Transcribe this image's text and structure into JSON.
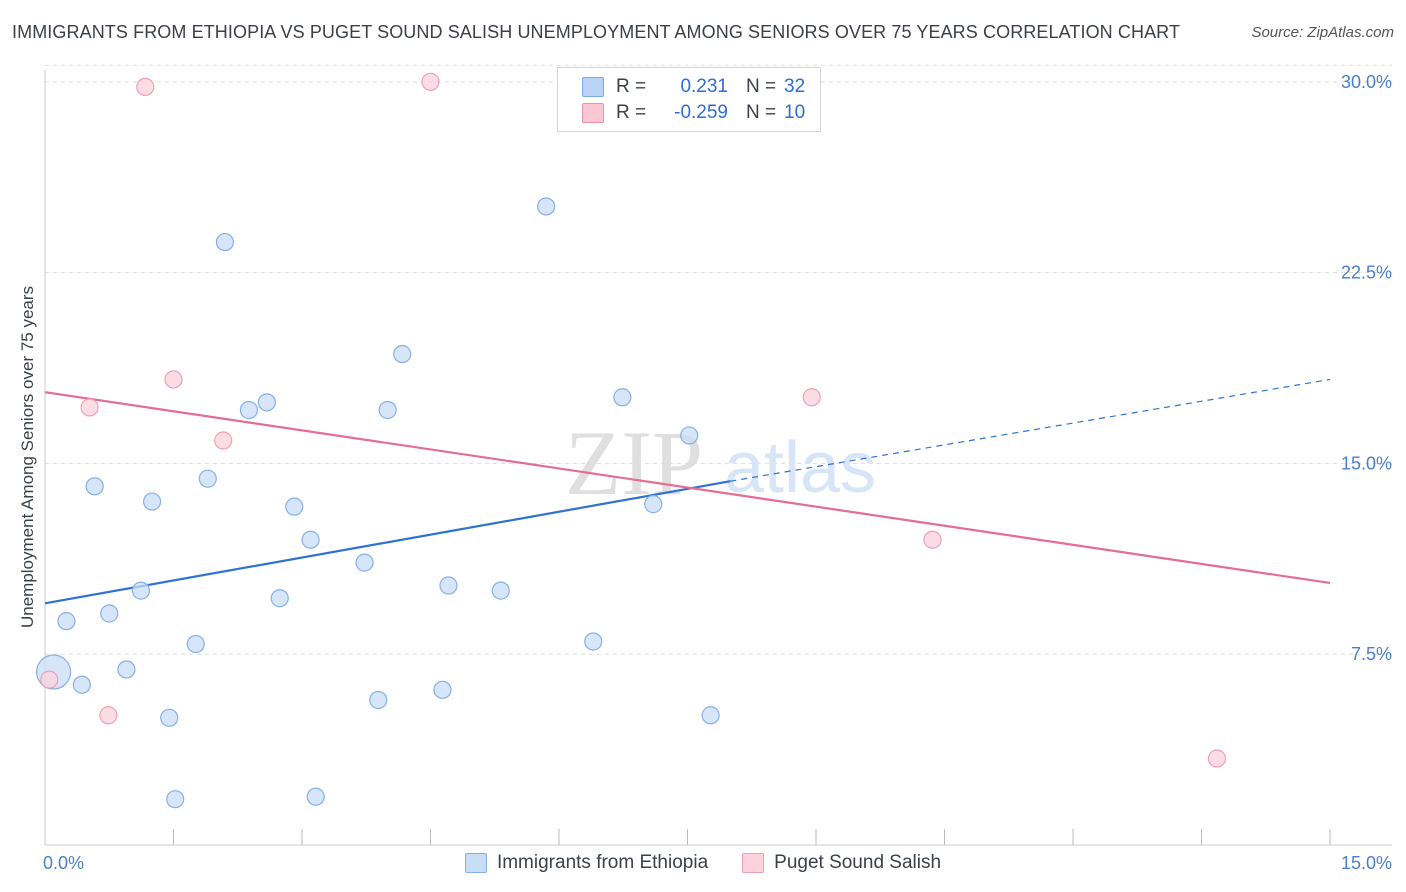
{
  "title": "IMMIGRANTS FROM ETHIOPIA VS PUGET SOUND SALISH UNEMPLOYMENT AMONG SENIORS OVER 75 YEARS CORRELATION CHART",
  "source": "Source: ZipAtlas.com",
  "watermark": {
    "zip": "ZIP",
    "atlas": "atlas"
  },
  "legend": {
    "r_label": "R =",
    "n_label": "N =",
    "rows": [
      {
        "name": "Immigrants from Ethiopia",
        "r": "0.231",
        "n": "32",
        "fill": "#b8d3f5",
        "stroke": "#7aa9e8"
      },
      {
        "name": "Puget Sound Salish",
        "r": "-0.259",
        "n": "10",
        "fill": "#f9c6d3",
        "stroke": "#ee92ac"
      }
    ]
  },
  "colors": {
    "blue_line": "#2f72d4",
    "pink_line": "#e56d92",
    "blue_fill": "#c8ddf6",
    "blue_stroke": "#86b0e6",
    "pink_fill": "#fbd2dd",
    "pink_stroke": "#ef9fb7",
    "grid": "#dddddd",
    "tick_text": "#4a7fcc"
  },
  "chart_data": {
    "type": "scatter",
    "title": "IMMIGRANTS FROM ETHIOPIA VS PUGET SOUND SALISH UNEMPLOYMENT AMONG SENIORS OVER 75 YEARS CORRELATION CHART",
    "xlabel": "",
    "ylabel": "Unemployment Among Seniors over 75 years",
    "xlim": [
      0,
      15
    ],
    "ylim": [
      0,
      30.7
    ],
    "x_tick_labels": [
      "0.0%",
      "15.0%"
    ],
    "x_tick_values": [
      0,
      15
    ],
    "x_minor_ticks": [
      1.5,
      3.0,
      4.5,
      6.0,
      7.5,
      9.0,
      10.5,
      12.0,
      13.5,
      15.0
    ],
    "y_ticks": [
      {
        "value": 7.5,
        "label": "7.5%"
      },
      {
        "value": 15.0,
        "label": "15.0%"
      },
      {
        "value": 22.5,
        "label": "22.5%"
      },
      {
        "value": 30.0,
        "label": "30.0%"
      }
    ],
    "series": [
      {
        "name": "Immigrants from Ethiopia",
        "color": "blue",
        "points": [
          {
            "x": 0.1,
            "y": 6.8,
            "size": "large"
          },
          {
            "x": 0.25,
            "y": 8.8
          },
          {
            "x": 0.43,
            "y": 6.3
          },
          {
            "x": 0.58,
            "y": 14.1
          },
          {
            "x": 0.75,
            "y": 9.1
          },
          {
            "x": 0.95,
            "y": 6.9
          },
          {
            "x": 1.12,
            "y": 10.0
          },
          {
            "x": 1.25,
            "y": 13.5
          },
          {
            "x": 1.45,
            "y": 5.0
          },
          {
            "x": 1.52,
            "y": 1.8
          },
          {
            "x": 1.76,
            "y": 7.9
          },
          {
            "x": 1.9,
            "y": 14.4
          },
          {
            "x": 2.1,
            "y": 23.7
          },
          {
            "x": 2.38,
            "y": 17.1
          },
          {
            "x": 2.59,
            "y": 17.4
          },
          {
            "x": 2.74,
            "y": 9.7
          },
          {
            "x": 2.91,
            "y": 13.3
          },
          {
            "x": 3.1,
            "y": 12.0
          },
          {
            "x": 3.16,
            "y": 1.9
          },
          {
            "x": 3.73,
            "y": 11.1
          },
          {
            "x": 3.89,
            "y": 5.7
          },
          {
            "x": 4.0,
            "y": 17.1
          },
          {
            "x": 4.17,
            "y": 19.3
          },
          {
            "x": 4.64,
            "y": 6.1
          },
          {
            "x": 4.71,
            "y": 10.2
          },
          {
            "x": 5.32,
            "y": 10.0
          },
          {
            "x": 5.85,
            "y": 25.1
          },
          {
            "x": 6.4,
            "y": 8.0
          },
          {
            "x": 6.74,
            "y": 17.6
          },
          {
            "x": 7.1,
            "y": 13.4
          },
          {
            "x": 7.52,
            "y": 16.1
          },
          {
            "x": 7.77,
            "y": 5.1
          }
        ]
      },
      {
        "name": "Puget Sound Salish",
        "color": "pink",
        "points": [
          {
            "x": 0.05,
            "y": 6.5
          },
          {
            "x": 0.52,
            "y": 17.2
          },
          {
            "x": 0.74,
            "y": 5.1
          },
          {
            "x": 1.17,
            "y": 29.8
          },
          {
            "x": 1.5,
            "y": 18.3
          },
          {
            "x": 2.08,
            "y": 15.9
          },
          {
            "x": 4.5,
            "y": 30.0
          },
          {
            "x": 8.95,
            "y": 17.6
          },
          {
            "x": 10.36,
            "y": 12.0
          },
          {
            "x": 13.68,
            "y": 3.4
          }
        ]
      }
    ],
    "trendlines": [
      {
        "series": "Immigrants from Ethiopia",
        "x_start": 0,
        "y_start": 9.5,
        "x_solid_end": 8.0,
        "y_solid_end": 14.3,
        "x_end": 15,
        "y_end": 18.3,
        "dashed_after": 8.0
      },
      {
        "series": "Puget Sound Salish",
        "x_start": 0,
        "y_start": 17.8,
        "x_end": 15,
        "y_end": 10.3
      }
    ]
  }
}
